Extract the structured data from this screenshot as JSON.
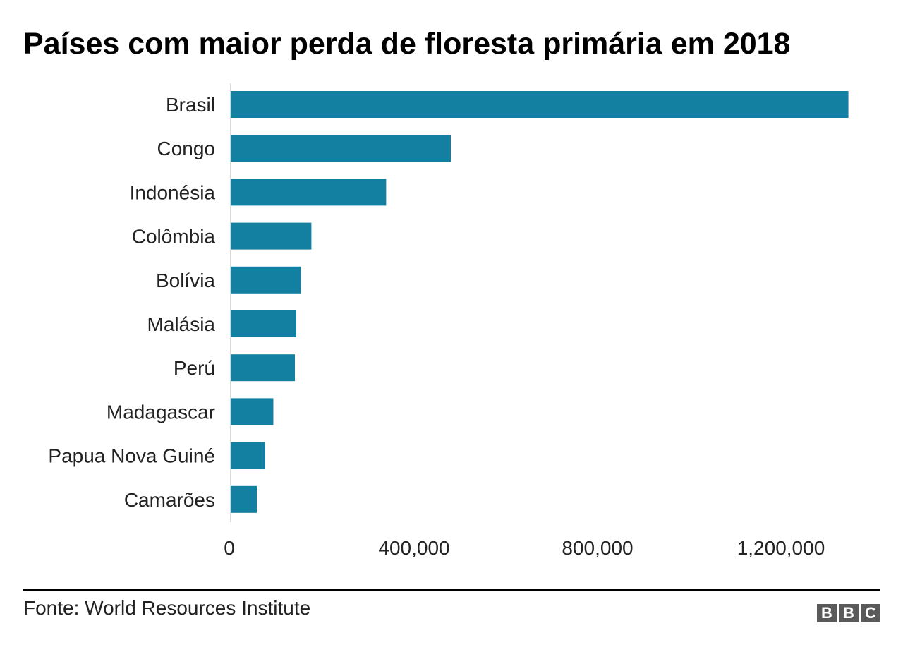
{
  "chart_data": {
    "type": "bar",
    "orientation": "horizontal",
    "title": "Países com maior perda de floresta primária em 2018",
    "categories": [
      "Brasil",
      "Congo",
      "Indonésia",
      "Colômbia",
      "Bolívia",
      "Malásia",
      "Perú",
      "Madagascar",
      "Papua Nova Guiné",
      "Camarões"
    ],
    "values": [
      1347000,
      480000,
      339000,
      176000,
      153000,
      143000,
      140000,
      93000,
      75000,
      57000
    ],
    "xlabel": "",
    "ylabel": "",
    "xlim": [
      0,
      1400000
    ],
    "ticks": [
      0,
      400000,
      800000,
      1200000
    ],
    "tick_labels": [
      "0",
      "400,000",
      "800,000",
      "1,200,000"
    ],
    "bar_color": "#1380a1",
    "grid": false
  },
  "source": "Fonte: World Resources Institute",
  "logo": [
    "B",
    "B",
    "C"
  ]
}
